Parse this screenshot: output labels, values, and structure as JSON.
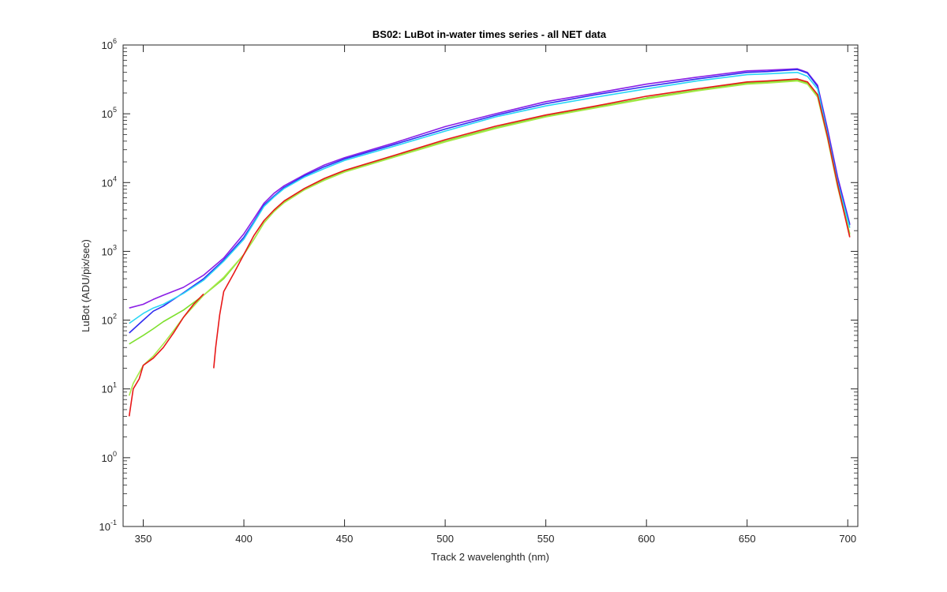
{
  "chart_data": {
    "type": "line",
    "title": "BS02: LuBot in-water times series - all NET data",
    "xlabel": "Track 2 wavelenghth (nm)",
    "ylabel": "LuBot (ADU/pix/sec)",
    "xlim": [
      340,
      705
    ],
    "ylim": [
      0.1,
      1000000
    ],
    "yscale": "log",
    "grid": false,
    "x_ticks": [
      350,
      400,
      450,
      500,
      550,
      600,
      650,
      700
    ],
    "y_ticks": [
      {
        "value": 0.1,
        "base": "10",
        "exp": "-1"
      },
      {
        "value": 1,
        "base": "10",
        "exp": "0"
      },
      {
        "value": 10,
        "base": "10",
        "exp": "1"
      },
      {
        "value": 100,
        "base": "10",
        "exp": "2"
      },
      {
        "value": 1000,
        "base": "10",
        "exp": "3"
      },
      {
        "value": 10000,
        "base": "10",
        "exp": "4"
      },
      {
        "value": 100000,
        "base": "10",
        "exp": "5"
      },
      {
        "value": 1000000,
        "base": "10",
        "exp": "6"
      }
    ],
    "series": [
      {
        "color": "#8b1fe6",
        "points": [
          [
            343,
            150
          ],
          [
            350,
            170
          ],
          [
            355,
            200
          ],
          [
            360,
            230
          ],
          [
            370,
            300
          ],
          [
            380,
            450
          ],
          [
            390,
            800
          ],
          [
            400,
            1800
          ],
          [
            405,
            3000
          ],
          [
            410,
            5000
          ],
          [
            415,
            7000
          ],
          [
            420,
            9000
          ],
          [
            430,
            13000
          ],
          [
            440,
            18000
          ],
          [
            450,
            23000
          ],
          [
            475,
            38000
          ],
          [
            500,
            65000
          ],
          [
            525,
            100000
          ],
          [
            550,
            150000
          ],
          [
            575,
            200000
          ],
          [
            600,
            270000
          ],
          [
            625,
            340000
          ],
          [
            650,
            420000
          ],
          [
            660,
            430000
          ],
          [
            675,
            450000
          ],
          [
            680,
            400000
          ],
          [
            685,
            260000
          ],
          [
            690,
            60000
          ],
          [
            695,
            12000
          ],
          [
            701,
            2500
          ]
        ]
      },
      {
        "color": "#2f2cf0",
        "points": [
          [
            343,
            65
          ],
          [
            350,
            100
          ],
          [
            355,
            135
          ],
          [
            360,
            160
          ],
          [
            370,
            250
          ],
          [
            380,
            400
          ],
          [
            390,
            750
          ],
          [
            400,
            1600
          ],
          [
            405,
            2700
          ],
          [
            410,
            4700
          ],
          [
            415,
            6400
          ],
          [
            420,
            8500
          ],
          [
            430,
            12500
          ],
          [
            440,
            17000
          ],
          [
            450,
            22000
          ],
          [
            475,
            36000
          ],
          [
            500,
            60000
          ],
          [
            525,
            95000
          ],
          [
            550,
            140000
          ],
          [
            575,
            190000
          ],
          [
            600,
            250000
          ],
          [
            625,
            320000
          ],
          [
            650,
            400000
          ],
          [
            660,
            410000
          ],
          [
            675,
            440000
          ],
          [
            680,
            390000
          ],
          [
            685,
            250000
          ],
          [
            690,
            55000
          ],
          [
            695,
            11000
          ],
          [
            701,
            2400
          ]
        ]
      },
      {
        "color": "#2ad6f5",
        "points": [
          [
            343,
            90
          ],
          [
            350,
            125
          ],
          [
            355,
            150
          ],
          [
            360,
            170
          ],
          [
            370,
            245
          ],
          [
            380,
            380
          ],
          [
            390,
            720
          ],
          [
            400,
            1500
          ],
          [
            405,
            2600
          ],
          [
            410,
            4500
          ],
          [
            415,
            6200
          ],
          [
            420,
            8200
          ],
          [
            430,
            12000
          ],
          [
            440,
            16000
          ],
          [
            450,
            21000
          ],
          [
            475,
            34000
          ],
          [
            500,
            56000
          ],
          [
            525,
            90000
          ],
          [
            550,
            130000
          ],
          [
            575,
            175000
          ],
          [
            600,
            230000
          ],
          [
            625,
            300000
          ],
          [
            650,
            370000
          ],
          [
            660,
            380000
          ],
          [
            675,
            400000
          ],
          [
            680,
            350000
          ],
          [
            685,
            230000
          ],
          [
            690,
            50000
          ],
          [
            695,
            10000
          ],
          [
            701,
            2200
          ]
        ]
      },
      {
        "color": "#7ee02e",
        "points": [
          [
            343,
            45
          ],
          [
            350,
            60
          ],
          [
            355,
            75
          ],
          [
            360,
            95
          ],
          [
            370,
            140
          ],
          [
            380,
            230
          ],
          [
            390,
            400
          ],
          [
            400,
            900
          ],
          [
            405,
            1500
          ],
          [
            410,
            2600
          ],
          [
            415,
            3800
          ],
          [
            420,
            5200
          ],
          [
            430,
            8000
          ],
          [
            440,
            11000
          ],
          [
            450,
            14500
          ],
          [
            475,
            24000
          ],
          [
            500,
            40000
          ],
          [
            525,
            63000
          ],
          [
            550,
            92000
          ],
          [
            575,
            125000
          ],
          [
            600,
            170000
          ],
          [
            625,
            220000
          ],
          [
            650,
            280000
          ],
          [
            660,
            290000
          ],
          [
            675,
            310000
          ],
          [
            680,
            280000
          ],
          [
            685,
            180000
          ],
          [
            690,
            45000
          ],
          [
            695,
            9000
          ],
          [
            701,
            1800
          ]
        ]
      },
      {
        "color": "#a8e84a",
        "points": [
          [
            343,
            8
          ],
          [
            345,
            12
          ],
          [
            350,
            22
          ],
          [
            355,
            30
          ],
          [
            360,
            45
          ],
          [
            365,
            70
          ],
          [
            370,
            110
          ],
          [
            380,
            230
          ],
          [
            390,
            420
          ],
          [
            400,
            900
          ],
          [
            405,
            1500
          ],
          [
            410,
            2600
          ],
          [
            415,
            3800
          ],
          [
            420,
            5100
          ],
          [
            430,
            7800
          ],
          [
            440,
            10800
          ],
          [
            450,
            14200
          ],
          [
            475,
            23500
          ],
          [
            500,
            39000
          ],
          [
            525,
            61000
          ],
          [
            550,
            90000
          ],
          [
            575,
            122000
          ],
          [
            600,
            165000
          ],
          [
            625,
            215000
          ],
          [
            650,
            270000
          ],
          [
            660,
            280000
          ],
          [
            675,
            300000
          ],
          [
            680,
            270000
          ],
          [
            685,
            175000
          ],
          [
            690,
            43000
          ],
          [
            695,
            8500
          ],
          [
            701,
            1700
          ]
        ]
      },
      {
        "color": "#e81818",
        "points": [
          [
            343,
            4
          ],
          [
            345,
            10
          ],
          [
            348,
            14
          ],
          [
            350,
            22
          ],
          [
            355,
            28
          ],
          [
            360,
            40
          ],
          [
            365,
            65
          ],
          [
            370,
            110
          ],
          [
            375,
            170
          ],
          [
            380,
            240
          ]
        ]
      },
      {
        "color": "#e81818",
        "points": [
          [
            385,
            20
          ],
          [
            386,
            40
          ],
          [
            388,
            120
          ],
          [
            390,
            260
          ],
          [
            395,
            480
          ],
          [
            400,
            900
          ],
          [
            405,
            1700
          ],
          [
            410,
            2800
          ],
          [
            415,
            4000
          ],
          [
            420,
            5400
          ],
          [
            430,
            8200
          ],
          [
            440,
            11500
          ],
          [
            450,
            15000
          ],
          [
            475,
            25000
          ],
          [
            500,
            42000
          ],
          [
            525,
            66000
          ],
          [
            550,
            96000
          ],
          [
            575,
            130000
          ],
          [
            600,
            180000
          ],
          [
            625,
            230000
          ],
          [
            650,
            290000
          ],
          [
            660,
            300000
          ],
          [
            675,
            320000
          ],
          [
            680,
            290000
          ],
          [
            685,
            190000
          ],
          [
            690,
            46000
          ],
          [
            695,
            9200
          ],
          [
            701,
            1600
          ]
        ]
      }
    ]
  }
}
